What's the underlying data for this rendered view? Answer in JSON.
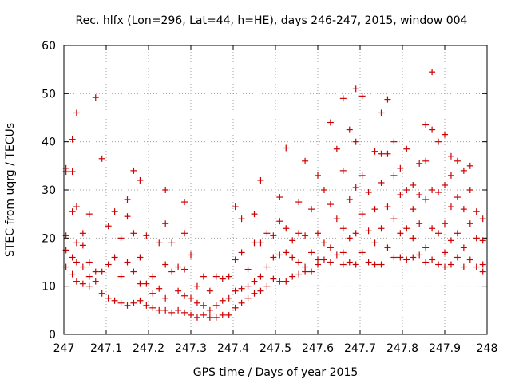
{
  "chart_data": {
    "type": "scatter",
    "title": "Rec. hlfx (Lon=296, Lat=44, h=HE), days 246-247, 2015, window 004",
    "xlabel": "GPS time / Days of year 2015",
    "ylabel": "STEC from uqrg / TECUs",
    "xlim": [
      247,
      248
    ],
    "ylim": [
      0,
      60
    ],
    "xticks": [
      "247",
      "247.1",
      "247.2",
      "247.3",
      "247.4",
      "247.5",
      "247.6",
      "247.7",
      "247.8",
      "247.9",
      "248"
    ],
    "yticks": [
      "0",
      "10",
      "20",
      "30",
      "40",
      "50",
      "60"
    ],
    "grid": true,
    "marker": "+",
    "color": "#cc0000",
    "series": [
      {
        "points": [
          [
            247.005,
            34.5
          ],
          [
            247.005,
            33.8
          ],
          [
            247.005,
            20.5
          ],
          [
            247.005,
            17.5
          ],
          [
            247.005,
            14.0
          ],
          [
            247.02,
            40.5
          ],
          [
            247.02,
            33.8
          ],
          [
            247.02,
            25.5
          ],
          [
            247.02,
            16.0
          ],
          [
            247.02,
            12.5
          ],
          [
            247.03,
            46.0
          ],
          [
            247.03,
            26.5
          ],
          [
            247.03,
            19.0
          ],
          [
            247.03,
            15.0
          ],
          [
            247.03,
            11.0
          ],
          [
            247.045,
            21.0
          ],
          [
            247.045,
            18.5
          ],
          [
            247.045,
            14.0
          ],
          [
            247.045,
            10.5
          ],
          [
            247.06,
            25.0
          ],
          [
            247.06,
            15.0
          ],
          [
            247.06,
            12.0
          ],
          [
            247.06,
            10.0
          ],
          [
            247.075,
            49.2
          ],
          [
            247.075,
            13.0
          ],
          [
            247.075,
            11.0
          ],
          [
            247.09,
            36.5
          ],
          [
            247.09,
            13.0
          ],
          [
            247.09,
            8.5
          ],
          [
            247.105,
            22.5
          ],
          [
            247.105,
            14.5
          ],
          [
            247.105,
            7.5
          ],
          [
            247.12,
            25.5
          ],
          [
            247.12,
            16.0
          ],
          [
            247.12,
            7.0
          ],
          [
            247.135,
            20.0
          ],
          [
            247.135,
            12.0
          ],
          [
            247.135,
            6.5
          ],
          [
            247.15,
            28.0
          ],
          [
            247.15,
            24.5
          ],
          [
            247.15,
            15.0
          ],
          [
            247.15,
            6.0
          ],
          [
            247.165,
            34.0
          ],
          [
            247.165,
            21.0
          ],
          [
            247.165,
            13.0
          ],
          [
            247.165,
            6.5
          ],
          [
            247.18,
            32.0
          ],
          [
            247.18,
            16.0
          ],
          [
            247.18,
            10.5
          ],
          [
            247.18,
            7.0
          ],
          [
            247.195,
            20.5
          ],
          [
            247.195,
            10.5
          ],
          [
            247.195,
            6.0
          ],
          [
            247.21,
            12.0
          ],
          [
            247.21,
            8.5
          ],
          [
            247.21,
            5.5
          ],
          [
            247.225,
            19.0
          ],
          [
            247.225,
            9.5
          ],
          [
            247.225,
            5.0
          ],
          [
            247.24,
            30.0
          ],
          [
            247.24,
            23.0
          ],
          [
            247.24,
            14.5
          ],
          [
            247.24,
            7.5
          ],
          [
            247.24,
            5.0
          ],
          [
            247.255,
            19.0
          ],
          [
            247.255,
            13.0
          ],
          [
            247.255,
            4.5
          ],
          [
            247.27,
            14.0
          ],
          [
            247.27,
            9.0
          ],
          [
            247.27,
            5.0
          ],
          [
            247.285,
            27.5
          ],
          [
            247.285,
            21.0
          ],
          [
            247.285,
            13.5
          ],
          [
            247.285,
            8.0
          ],
          [
            247.285,
            4.5
          ],
          [
            247.3,
            16.5
          ],
          [
            247.3,
            7.5
          ],
          [
            247.3,
            4.0
          ],
          [
            247.315,
            10.0
          ],
          [
            247.315,
            6.5
          ],
          [
            247.315,
            3.5
          ],
          [
            247.33,
            12.0
          ],
          [
            247.33,
            6.0
          ],
          [
            247.33,
            4.0
          ],
          [
            247.345,
            9.0
          ],
          [
            247.345,
            5.0
          ],
          [
            247.345,
            3.5
          ],
          [
            247.36,
            12.0
          ],
          [
            247.36,
            6.0
          ],
          [
            247.36,
            3.5
          ],
          [
            247.375,
            11.5
          ],
          [
            247.375,
            7.0
          ],
          [
            247.375,
            4.0
          ],
          [
            247.39,
            12.0
          ],
          [
            247.39,
            7.5
          ],
          [
            247.39,
            4.0
          ],
          [
            247.405,
            26.5
          ],
          [
            247.405,
            15.5
          ],
          [
            247.405,
            9.0
          ],
          [
            247.405,
            5.5
          ],
          [
            247.42,
            24.0
          ],
          [
            247.42,
            17.0
          ],
          [
            247.42,
            9.5
          ],
          [
            247.42,
            6.5
          ],
          [
            247.435,
            13.5
          ],
          [
            247.435,
            10.0
          ],
          [
            247.435,
            7.5
          ],
          [
            247.45,
            25.0
          ],
          [
            247.45,
            19.0
          ],
          [
            247.45,
            11.0
          ],
          [
            247.45,
            8.5
          ],
          [
            247.465,
            32.0
          ],
          [
            247.465,
            19.0
          ],
          [
            247.465,
            12.0
          ],
          [
            247.465,
            9.0
          ],
          [
            247.48,
            21.0
          ],
          [
            247.48,
            14.0
          ],
          [
            247.48,
            10.0
          ],
          [
            247.495,
            20.5
          ],
          [
            247.495,
            16.0
          ],
          [
            247.495,
            11.5
          ],
          [
            247.51,
            28.5
          ],
          [
            247.51,
            23.5
          ],
          [
            247.51,
            16.5
          ],
          [
            247.51,
            11.0
          ],
          [
            247.525,
            38.7
          ],
          [
            247.525,
            22.0
          ],
          [
            247.525,
            17.0
          ],
          [
            247.525,
            11.0
          ],
          [
            247.54,
            19.5
          ],
          [
            247.54,
            16.0
          ],
          [
            247.54,
            12.0
          ],
          [
            247.555,
            27.5
          ],
          [
            247.555,
            21.0
          ],
          [
            247.555,
            15.0
          ],
          [
            247.555,
            12.5
          ],
          [
            247.57,
            36.0
          ],
          [
            247.57,
            20.5
          ],
          [
            247.57,
            14.0
          ],
          [
            247.57,
            13.0
          ],
          [
            247.585,
            26.0
          ],
          [
            247.585,
            17.0
          ],
          [
            247.585,
            13.0
          ],
          [
            247.6,
            33.0
          ],
          [
            247.6,
            21.0
          ],
          [
            247.6,
            15.5
          ],
          [
            247.6,
            14.5
          ],
          [
            247.615,
            30.0
          ],
          [
            247.615,
            19.0
          ],
          [
            247.615,
            15.5
          ],
          [
            247.63,
            44.0
          ],
          [
            247.63,
            27.0
          ],
          [
            247.63,
            18.0
          ],
          [
            247.63,
            15.0
          ],
          [
            247.645,
            38.5
          ],
          [
            247.645,
            24.0
          ],
          [
            247.645,
            16.5
          ],
          [
            247.66,
            49.0
          ],
          [
            247.66,
            34.0
          ],
          [
            247.66,
            22.0
          ],
          [
            247.66,
            17.0
          ],
          [
            247.66,
            14.5
          ],
          [
            247.675,
            42.5
          ],
          [
            247.675,
            28.0
          ],
          [
            247.675,
            20.0
          ],
          [
            247.675,
            15.0
          ],
          [
            247.69,
            51.0
          ],
          [
            247.69,
            40.0
          ],
          [
            247.69,
            30.5
          ],
          [
            247.69,
            21.0
          ],
          [
            247.69,
            14.5
          ],
          [
            247.705,
            49.5
          ],
          [
            247.705,
            33.0
          ],
          [
            247.705,
            25.0
          ],
          [
            247.705,
            17.0
          ],
          [
            247.72,
            29.5
          ],
          [
            247.72,
            21.5
          ],
          [
            247.72,
            15.0
          ],
          [
            247.735,
            38.0
          ],
          [
            247.735,
            26.0
          ],
          [
            247.735,
            19.0
          ],
          [
            247.735,
            14.5
          ],
          [
            247.75,
            46.0
          ],
          [
            247.75,
            37.5
          ],
          [
            247.75,
            31.5
          ],
          [
            247.75,
            22.0
          ],
          [
            247.75,
            14.5
          ],
          [
            247.765,
            48.8
          ],
          [
            247.765,
            37.5
          ],
          [
            247.765,
            26.5
          ],
          [
            247.765,
            18.0
          ],
          [
            247.78,
            40.0
          ],
          [
            247.78,
            33.0
          ],
          [
            247.78,
            24.0
          ],
          [
            247.78,
            16.0
          ],
          [
            247.795,
            34.5
          ],
          [
            247.795,
            29.0
          ],
          [
            247.795,
            21.0
          ],
          [
            247.795,
            16.0
          ],
          [
            247.81,
            38.5
          ],
          [
            247.81,
            30.0
          ],
          [
            247.81,
            22.0
          ],
          [
            247.81,
            15.5
          ],
          [
            247.825,
            31.0
          ],
          [
            247.825,
            26.0
          ],
          [
            247.825,
            20.0
          ],
          [
            247.825,
            16.0
          ],
          [
            247.84,
            35.5
          ],
          [
            247.84,
            29.0
          ],
          [
            247.84,
            23.0
          ],
          [
            247.84,
            16.5
          ],
          [
            247.855,
            43.5
          ],
          [
            247.855,
            36.0
          ],
          [
            247.855,
            28.0
          ],
          [
            247.855,
            18.0
          ],
          [
            247.855,
            15.0
          ],
          [
            247.87,
            54.5
          ],
          [
            247.87,
            42.5
          ],
          [
            247.87,
            30.0
          ],
          [
            247.87,
            22.0
          ],
          [
            247.87,
            15.5
          ],
          [
            247.885,
            40.0
          ],
          [
            247.885,
            29.5
          ],
          [
            247.885,
            21.0
          ],
          [
            247.885,
            14.5
          ],
          [
            247.9,
            41.5
          ],
          [
            247.9,
            31.0
          ],
          [
            247.9,
            23.0
          ],
          [
            247.9,
            17.0
          ],
          [
            247.9,
            14.0
          ],
          [
            247.915,
            37.0
          ],
          [
            247.915,
            33.0
          ],
          [
            247.915,
            26.5
          ],
          [
            247.915,
            19.5
          ],
          [
            247.915,
            14.5
          ],
          [
            247.93,
            36.0
          ],
          [
            247.93,
            28.5
          ],
          [
            247.93,
            21.0
          ],
          [
            247.93,
            16.0
          ],
          [
            247.945,
            34.0
          ],
          [
            247.945,
            26.0
          ],
          [
            247.945,
            18.0
          ],
          [
            247.945,
            14.0
          ],
          [
            247.96,
            35.0
          ],
          [
            247.96,
            30.0
          ],
          [
            247.96,
            23.0
          ],
          [
            247.96,
            15.5
          ],
          [
            247.975,
            25.5
          ],
          [
            247.975,
            20.0
          ],
          [
            247.975,
            14.0
          ],
          [
            247.99,
            24.0
          ],
          [
            247.99,
            19.5
          ],
          [
            247.99,
            14.5
          ],
          [
            247.99,
            13.0
          ]
        ]
      }
    ]
  }
}
